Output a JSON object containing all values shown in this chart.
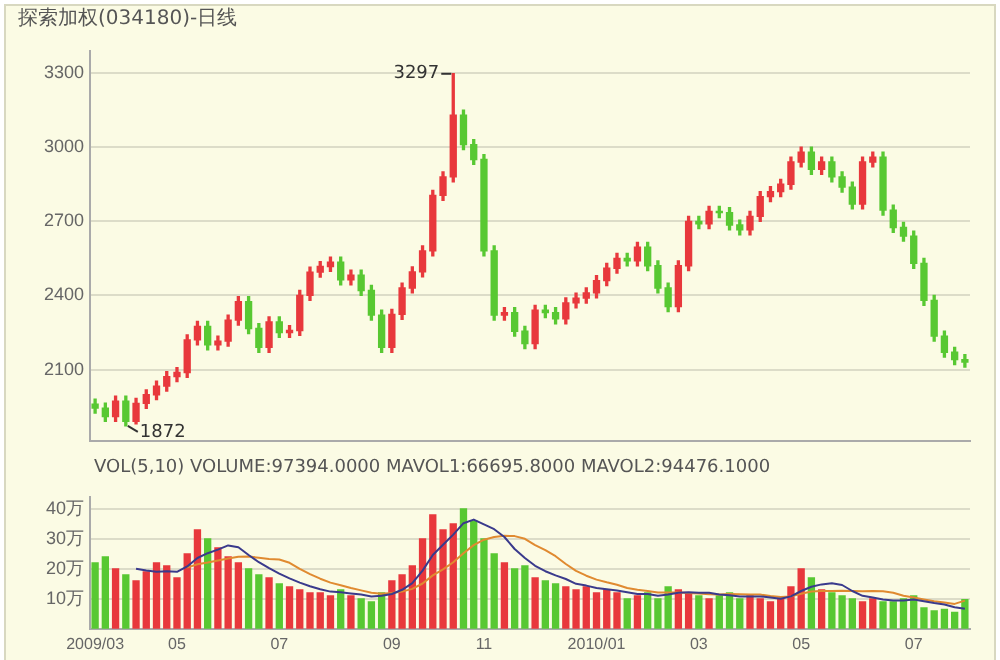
{
  "chart_data": [
    {
      "type": "candlestick",
      "title": "探索加权(034180)-日线",
      "categories": [
        "2009/03",
        null,
        null,
        null,
        null,
        null,
        null,
        null,
        "05",
        null,
        null,
        null,
        null,
        null,
        null,
        null,
        null,
        null,
        "07",
        null,
        null,
        null,
        null,
        null,
        null,
        null,
        null,
        null,
        null,
        "09",
        null,
        null,
        null,
        null,
        null,
        null,
        null,
        null,
        "11",
        null,
        null,
        null,
        null,
        null,
        null,
        null,
        null,
        null,
        null,
        "2010/01",
        null,
        null,
        null,
        null,
        null,
        null,
        null,
        null,
        null,
        "03",
        null,
        null,
        null,
        null,
        null,
        null,
        null,
        null,
        null,
        "05",
        null,
        null,
        null,
        null,
        null,
        null,
        null,
        null,
        null,
        null,
        "07",
        null,
        null,
        null,
        null,
        null
      ],
      "ohlc": [
        [
          1960,
          1980,
          1924,
          1944
        ],
        [
          1944,
          1964,
          1890,
          1910
        ],
        [
          1910,
          1992,
          1890,
          1972
        ],
        [
          1972,
          1992,
          1872,
          1890
        ],
        [
          1890,
          1983,
          1880,
          1963
        ],
        [
          1963,
          2018,
          1943,
          1998
        ],
        [
          1998,
          2053,
          1978,
          2033
        ],
        [
          2033,
          2091,
          2013,
          2071
        ],
        [
          2071,
          2108,
          2051,
          2088
        ],
        [
          2088,
          2240,
          2068,
          2220
        ],
        [
          2220,
          2295,
          2200,
          2275
        ],
        [
          2275,
          2295,
          2180,
          2200
        ],
        [
          2200,
          2235,
          2180,
          2215
        ],
        [
          2215,
          2320,
          2195,
          2300
        ],
        [
          2300,
          2395,
          2280,
          2375
        ],
        [
          2375,
          2395,
          2246,
          2266
        ],
        [
          2266,
          2286,
          2170,
          2190
        ],
        [
          2190,
          2313,
          2170,
          2293
        ],
        [
          2293,
          2313,
          2230,
          2250
        ],
        [
          2250,
          2278,
          2230,
          2258
        ],
        [
          2258,
          2420,
          2238,
          2400
        ],
        [
          2400,
          2514,
          2380,
          2494
        ],
        [
          2494,
          2537,
          2474,
          2517
        ],
        [
          2517,
          2555,
          2497,
          2535
        ],
        [
          2535,
          2555,
          2443,
          2463
        ],
        [
          2463,
          2502,
          2443,
          2482
        ],
        [
          2482,
          2502,
          2400,
          2420
        ],
        [
          2420,
          2440,
          2300,
          2320
        ],
        [
          2320,
          2340,
          2170,
          2190
        ],
        [
          2190,
          2343,
          2170,
          2323
        ],
        [
          2323,
          2450,
          2303,
          2430
        ],
        [
          2430,
          2515,
          2410,
          2495
        ],
        [
          2495,
          2600,
          2475,
          2580
        ],
        [
          2580,
          2825,
          2560,
          2805
        ],
        [
          2805,
          2900,
          2785,
          2880
        ],
        [
          2880,
          3297,
          2860,
          3130
        ],
        [
          3130,
          3150,
          2990,
          3010
        ],
        [
          3010,
          3030,
          2930,
          2950
        ],
        [
          2950,
          2970,
          2560,
          2580
        ],
        [
          2580,
          2600,
          2300,
          2320
        ],
        [
          2320,
          2350,
          2300,
          2330
        ],
        [
          2330,
          2350,
          2235,
          2255
        ],
        [
          2255,
          2275,
          2185,
          2205
        ],
        [
          2205,
          2360,
          2185,
          2340
        ],
        [
          2340,
          2360,
          2310,
          2330
        ],
        [
          2330,
          2350,
          2285,
          2305
        ],
        [
          2305,
          2390,
          2285,
          2370
        ],
        [
          2370,
          2409,
          2350,
          2389
        ],
        [
          2389,
          2430,
          2369,
          2410
        ],
        [
          2410,
          2480,
          2390,
          2460
        ],
        [
          2460,
          2530,
          2440,
          2510
        ],
        [
          2510,
          2570,
          2490,
          2550
        ],
        [
          2550,
          2570,
          2520,
          2540
        ],
        [
          2540,
          2615,
          2520,
          2595
        ],
        [
          2595,
          2615,
          2500,
          2520
        ],
        [
          2520,
          2540,
          2410,
          2430
        ],
        [
          2430,
          2450,
          2335,
          2355
        ],
        [
          2355,
          2540,
          2335,
          2520
        ],
        [
          2520,
          2720,
          2500,
          2700
        ],
        [
          2700,
          2720,
          2670,
          2690
        ],
        [
          2690,
          2760,
          2670,
          2740
        ],
        [
          2740,
          2760,
          2715,
          2735
        ],
        [
          2735,
          2755,
          2665,
          2685
        ],
        [
          2685,
          2705,
          2645,
          2665
        ],
        [
          2665,
          2740,
          2645,
          2720
        ],
        [
          2720,
          2820,
          2700,
          2800
        ],
        [
          2800,
          2840,
          2780,
          2820
        ],
        [
          2820,
          2870,
          2800,
          2850
        ],
        [
          2850,
          2960,
          2830,
          2940
        ],
        [
          2940,
          3000,
          2920,
          2980
        ],
        [
          2980,
          3000,
          2890,
          2910
        ],
        [
          2910,
          2960,
          2890,
          2940
        ],
        [
          2940,
          2960,
          2860,
          2880
        ],
        [
          2880,
          2900,
          2818,
          2838
        ],
        [
          2838,
          2858,
          2750,
          2770
        ],
        [
          2770,
          2960,
          2750,
          2940
        ],
        [
          2940,
          2980,
          2920,
          2960
        ],
        [
          2960,
          2980,
          2725,
          2745
        ],
        [
          2745,
          2765,
          2655,
          2675
        ],
        [
          2675,
          2695,
          2620,
          2640
        ],
        [
          2640,
          2660,
          2510,
          2530
        ],
        [
          2530,
          2550,
          2360,
          2380
        ],
        [
          2380,
          2400,
          2215,
          2235
        ],
        [
          2235,
          2255,
          2150,
          2170
        ],
        [
          2170,
          2190,
          2120,
          2140
        ],
        [
          2140,
          2160,
          2110,
          2130
        ]
      ],
      "colors": [
        "#58c832",
        "#58c832",
        "#e8383c",
        "#58c832",
        "#e8383c",
        "#e8383c",
        "#e8383c",
        "#e8383c",
        "#e8383c",
        "#e8383c",
        "#e8383c",
        "#58c832",
        "#e8383c",
        "#e8383c",
        "#e8383c",
        "#58c832",
        "#58c832",
        "#e8383c",
        "#58c832",
        "#e8383c",
        "#e8383c",
        "#e8383c",
        "#e8383c",
        "#e8383c",
        "#58c832",
        "#e8383c",
        "#58c832",
        "#58c832",
        "#58c832",
        "#e8383c",
        "#e8383c",
        "#e8383c",
        "#e8383c",
        "#e8383c",
        "#e8383c",
        "#e8383c",
        "#58c832",
        "#58c832",
        "#58c832",
        "#58c832",
        "#e8383c",
        "#58c832",
        "#58c832",
        "#e8383c",
        "#58c832",
        "#58c832",
        "#e8383c",
        "#e8383c",
        "#e8383c",
        "#e8383c",
        "#e8383c",
        "#e8383c",
        "#58c832",
        "#e8383c",
        "#58c832",
        "#58c832",
        "#58c832",
        "#e8383c",
        "#e8383c",
        "#58c832",
        "#e8383c",
        "#58c832",
        "#58c832",
        "#58c832",
        "#e8383c",
        "#e8383c",
        "#e8383c",
        "#e8383c",
        "#e8383c",
        "#e8383c",
        "#58c832",
        "#e8383c",
        "#58c832",
        "#58c832",
        "#58c832",
        "#e8383c",
        "#e8383c",
        "#58c832",
        "#58c832",
        "#58c832",
        "#58c832",
        "#58c832",
        "#58c832",
        "#58c832",
        "#58c832",
        "#58c832"
      ],
      "ylim": [
        1810,
        3390
      ],
      "yticks": [
        2100,
        2400,
        2700,
        3000,
        3300
      ],
      "grid": "y",
      "legend": false,
      "tick_labels": "y",
      "annotations": [
        "3297",
        "1872"
      ]
    },
    {
      "type": "bar",
      "categories": [
        "2009/03",
        null,
        null,
        null,
        null,
        null,
        null,
        null,
        "05",
        null,
        null,
        null,
        null,
        null,
        null,
        null,
        null,
        null,
        "07",
        null,
        null,
        null,
        null,
        null,
        null,
        null,
        null,
        null,
        null,
        "09",
        null,
        null,
        null,
        null,
        null,
        null,
        null,
        null,
        "11",
        null,
        null,
        null,
        null,
        null,
        null,
        null,
        null,
        null,
        null,
        "2010/01",
        null,
        null,
        null,
        null,
        null,
        null,
        null,
        null,
        null,
        "03",
        null,
        null,
        null,
        null,
        null,
        null,
        null,
        null,
        null,
        "05",
        null,
        null,
        null,
        null,
        null,
        null,
        null,
        null,
        null,
        null,
        "07",
        null,
        null,
        null,
        null,
        null
      ],
      "series": [
        {
          "type": "bar",
          "colors": [
            "#58c832",
            "#58c832",
            "#e8383c",
            "#58c832",
            "#e8383c",
            "#e8383c",
            "#e8383c",
            "#e8383c",
            "#e8383c",
            "#e8383c",
            "#e8383c",
            "#58c832",
            "#e8383c",
            "#e8383c",
            "#e8383c",
            "#58c832",
            "#58c832",
            "#e8383c",
            "#58c832",
            "#e8383c",
            "#e8383c",
            "#e8383c",
            "#e8383c",
            "#e8383c",
            "#58c832",
            "#e8383c",
            "#58c832",
            "#58c832",
            "#58c832",
            "#e8383c",
            "#e8383c",
            "#e8383c",
            "#e8383c",
            "#e8383c",
            "#e8383c",
            "#e8383c",
            "#58c832",
            "#58c832",
            "#58c832",
            "#58c832",
            "#e8383c",
            "#58c832",
            "#58c832",
            "#e8383c",
            "#58c832",
            "#58c832",
            "#e8383c",
            "#e8383c",
            "#e8383c",
            "#e8383c",
            "#e8383c",
            "#e8383c",
            "#58c832",
            "#e8383c",
            "#58c832",
            "#58c832",
            "#58c832",
            "#e8383c",
            "#e8383c",
            "#58c832",
            "#e8383c",
            "#58c832",
            "#58c832",
            "#58c832",
            "#e8383c",
            "#e8383c",
            "#e8383c",
            "#e8383c",
            "#e8383c",
            "#e8383c",
            "#58c832",
            "#e8383c",
            "#58c832",
            "#58c832",
            "#58c832",
            "#e8383c",
            "#e8383c",
            "#58c832",
            "#58c832",
            "#58c832",
            "#58c832",
            "#58c832",
            "#58c832",
            "#58c832",
            "#58c832",
            "#58c832"
          ],
          "values": [
            22,
            24,
            20,
            18,
            16,
            19,
            22,
            21,
            17,
            25,
            33,
            30,
            27,
            24,
            22,
            20,
            18,
            17,
            15,
            14,
            13,
            12,
            12,
            11,
            13,
            11,
            10,
            9,
            12,
            16,
            18,
            21,
            30,
            38,
            33,
            35,
            40,
            36,
            30,
            25,
            22,
            20,
            21,
            17,
            16,
            15,
            14,
            13,
            14,
            12,
            13,
            12,
            10,
            11,
            12,
            10,
            14,
            13,
            12,
            11,
            10,
            11,
            12,
            10,
            11,
            10,
            9,
            10,
            14,
            20,
            17,
            13,
            12,
            11,
            10,
            9,
            10,
            9,
            9,
            10,
            11,
            7,
            6,
            6.5,
            5.5,
            9.7
          ]
        },
        {
          "type": "line",
          "color": "#3a3a8c",
          "values": [
            null,
            null,
            null,
            null,
            20,
            19.4,
            19,
            19.2,
            19,
            20.8,
            23.6,
            25.2,
            26.4,
            27.8,
            27.2,
            24.6,
            22.2,
            20.2,
            18.4,
            16.8,
            15.4,
            14.2,
            13.2,
            12.4,
            12.2,
            11.8,
            11.4,
            10.8,
            11,
            11.6,
            13,
            15.2,
            19.4,
            24.6,
            28,
            31.4,
            35.2,
            36.4,
            34.8,
            33.2,
            30.6,
            26.6,
            23.6,
            21,
            19.2,
            17.8,
            16.6,
            15,
            14.4,
            13.6,
            13.2,
            12.8,
            12.2,
            11.6,
            11.6,
            11,
            11.4,
            12,
            12.2,
            12,
            12,
            11.4,
            11.2,
            10.8,
            10.8,
            10.8,
            10.4,
            10,
            10.8,
            12.6,
            14,
            14.8,
            15.2,
            14.6,
            12.6,
            11,
            10.4,
            9.8,
            9.4,
            9.4,
            9.8,
            9.2,
            8.6,
            8.1,
            7.2,
            6.7
          ]
        },
        {
          "type": "line",
          "color": "#e08a30",
          "values": [
            null,
            null,
            null,
            null,
            null,
            null,
            null,
            null,
            null,
            20.4,
            21.5,
            22.1,
            22.8,
            23.4,
            24,
            24.1,
            23.7,
            23.3,
            23.1,
            22,
            20,
            18.2,
            16.7,
            15.4,
            14.5,
            13.6,
            12.8,
            12,
            11.7,
            11.9,
            12.4,
            13.3,
            15.1,
            17.8,
            19.8,
            22.2,
            25.2,
            27.9,
            29.7,
            30.6,
            31,
            30.9,
            30,
            27.9,
            26.2,
            24.2,
            21.6,
            19.3,
            17.7,
            16.4,
            15.5,
            14.7,
            13.6,
            13,
            12.6,
            12.1,
            12.1,
            12.1,
            11.9,
            11.8,
            11.5,
            11.4,
            11.6,
            11.5,
            11.4,
            11.4,
            10.9,
            10.6,
            10.8,
            11.7,
            12.4,
            12.6,
            12.6,
            12.7,
            12.6,
            12.5,
            12.6,
            12.5,
            12,
            11,
            10.4,
            9.8,
            9.2,
            8.8,
            8.3,
            9.4
          ]
        }
      ],
      "ylim": [
        0,
        44
      ],
      "yticks": [
        {
          "value": 10,
          "label": "10万"
        },
        {
          "value": 20,
          "label": "20万"
        },
        {
          "value": 30,
          "label": "30万"
        },
        {
          "value": 40,
          "label": "40万"
        }
      ],
      "grid": "y",
      "legend": false,
      "annotations": [
        "VOL(5,10) VOLUME:97394.0000 MAVOL1:66695.8000 MAVOL2:94476.1000"
      ]
    }
  ]
}
